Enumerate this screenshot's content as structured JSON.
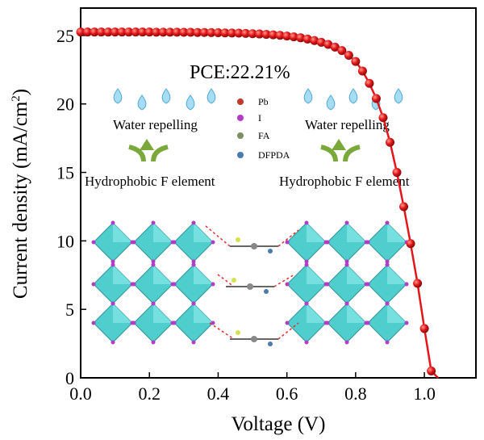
{
  "chart_data": {
    "type": "scatter",
    "xlabel": "Voltage (V)",
    "ylabel_main": "Current density (mA/cm",
    "ylabel_sup": "2",
    "ylabel_close": ")",
    "xlim": [
      0.0,
      1.15
    ],
    "ylim": [
      0,
      27
    ],
    "xticks": [
      "0.0",
      "0.2",
      "0.4",
      "0.6",
      "0.8",
      "1.0"
    ],
    "xtick_values": [
      0.0,
      0.2,
      0.4,
      0.6,
      0.8,
      1.0
    ],
    "yticks": [
      "0",
      "5",
      "10",
      "15",
      "20",
      "25"
    ],
    "ytick_values": [
      0,
      5,
      10,
      15,
      20,
      25
    ],
    "annotation": "PCE:22.21%",
    "series": [
      {
        "color": "#e3161b",
        "x": [
          0.0,
          0.02,
          0.04,
          0.06,
          0.08,
          0.1,
          0.12,
          0.14,
          0.16,
          0.18,
          0.2,
          0.22,
          0.24,
          0.26,
          0.28,
          0.3,
          0.32,
          0.34,
          0.36,
          0.38,
          0.4,
          0.42,
          0.44,
          0.46,
          0.48,
          0.5,
          0.52,
          0.54,
          0.56,
          0.58,
          0.6,
          0.62,
          0.64,
          0.66,
          0.68,
          0.7,
          0.72,
          0.74,
          0.76,
          0.78,
          0.8,
          0.82,
          0.84,
          0.86,
          0.88,
          0.9,
          0.92,
          0.94,
          0.96,
          0.98,
          1.0,
          1.02,
          1.04,
          1.06,
          1.08,
          1.1
        ],
        "y": [
          25.25,
          25.25,
          25.25,
          25.25,
          25.25,
          25.25,
          25.25,
          25.25,
          25.25,
          25.25,
          25.25,
          25.24,
          25.24,
          25.24,
          25.24,
          25.23,
          25.23,
          25.22,
          25.22,
          25.21,
          25.2,
          25.19,
          25.18,
          25.17,
          25.15,
          25.13,
          25.11,
          25.08,
          25.05,
          25.01,
          24.96,
          24.9,
          24.83,
          24.74,
          24.63,
          24.5,
          24.35,
          24.15,
          23.9,
          23.55,
          23.1,
          22.4,
          21.5,
          20.4,
          19.0,
          17.2,
          15.0,
          12.5,
          9.8,
          6.9,
          3.6,
          0.5,
          0,
          0,
          0,
          0
        ]
      }
    ]
  },
  "inset": {
    "left_repel": "Water repelling",
    "right_repel": "Water repelling",
    "left_hydro": "Hydrophobic F element",
    "right_hydro": "Hydrophobic F element",
    "legend": [
      {
        "label": "Pb",
        "color": "#c0392b"
      },
      {
        "label": "I",
        "color": "#b03cc8"
      },
      {
        "label": "FA",
        "color": "#7d8f60"
      },
      {
        "label": "DFPDA",
        "color": "#4a7ab0"
      }
    ]
  }
}
